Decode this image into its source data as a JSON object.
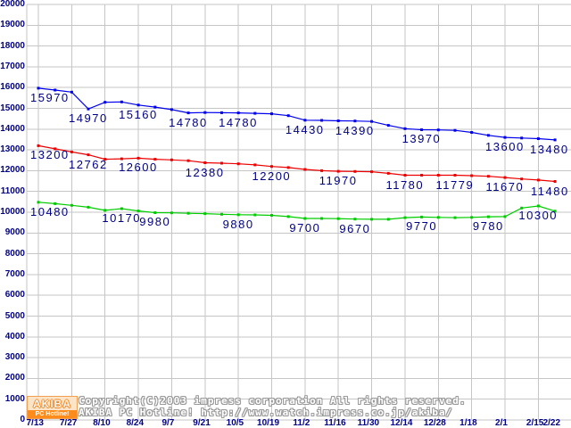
{
  "chart_data": {
    "type": "line",
    "title": "",
    "grid": true,
    "legend": "none",
    "ylim": [
      0,
      20000
    ],
    "y_tick_step": 1000,
    "y_ticks": [
      0,
      1000,
      2000,
      3000,
      4000,
      5000,
      6000,
      7000,
      8000,
      9000,
      10000,
      11000,
      12000,
      13000,
      14000,
      15000,
      16000,
      17000,
      18000,
      19000,
      20000
    ],
    "x_ticks": [
      {
        "label": "7/13",
        "i": 0
      },
      {
        "label": "7/27",
        "i": 2
      },
      {
        "label": "8/10",
        "i": 4
      },
      {
        "label": "8/24",
        "i": 6
      },
      {
        "label": "9/7",
        "i": 8
      },
      {
        "label": "9/21",
        "i": 10
      },
      {
        "label": "10/5",
        "i": 12
      },
      {
        "label": "10/19",
        "i": 14
      },
      {
        "label": "11/2",
        "i": 16
      },
      {
        "label": "11/16",
        "i": 18
      },
      {
        "label": "11/30",
        "i": 20
      },
      {
        "label": "12/14",
        "i": 22
      },
      {
        "label": "12/28",
        "i": 24
      },
      {
        "label": "1/18",
        "i": 26
      },
      {
        "label": "2/1",
        "i": 28
      },
      {
        "label": "2/15",
        "i": 30
      },
      {
        "label": "2/22",
        "i": 31
      }
    ],
    "series": [
      {
        "name": "blue",
        "color": "#0000ee",
        "values": [
          15970,
          15880,
          15780,
          14970,
          15290,
          15310,
          15160,
          15060,
          14940,
          14780,
          14800,
          14790,
          14780,
          14760,
          14740,
          14650,
          14430,
          14420,
          14400,
          14390,
          14370,
          14180,
          14020,
          13970,
          13960,
          13940,
          13840,
          13700,
          13600,
          13570,
          13540,
          13480
        ],
        "labels": [
          {
            "i": 0,
            "text": "15970"
          },
          {
            "i": 3,
            "text": "14970"
          },
          {
            "i": 6,
            "text": "15160"
          },
          {
            "i": 9,
            "text": "14780"
          },
          {
            "i": 12,
            "text": "14780"
          },
          {
            "i": 16,
            "text": "14430"
          },
          {
            "i": 19,
            "text": "14390"
          },
          {
            "i": 23,
            "text": "13970"
          },
          {
            "i": 28,
            "text": "13600"
          },
          {
            "i": 31,
            "text": "13480"
          }
        ]
      },
      {
        "name": "red",
        "color": "#ee0000",
        "values": [
          13200,
          13050,
          12900,
          12762,
          12550,
          12570,
          12600,
          12550,
          12520,
          12480,
          12380,
          12360,
          12330,
          12280,
          12200,
          12150,
          12060,
          12000,
          11970,
          11960,
          11950,
          11870,
          11780,
          11780,
          11780,
          11779,
          11760,
          11730,
          11670,
          11600,
          11550,
          11480
        ],
        "labels": [
          {
            "i": 0,
            "text": "13200"
          },
          {
            "i": 3,
            "text": "12762"
          },
          {
            "i": 6,
            "text": "12600"
          },
          {
            "i": 10,
            "text": "12380"
          },
          {
            "i": 14,
            "text": "12200"
          },
          {
            "i": 18,
            "text": "11970"
          },
          {
            "i": 22,
            "text": "11780"
          },
          {
            "i": 25,
            "text": "11779"
          },
          {
            "i": 28,
            "text": "11670"
          },
          {
            "i": 31,
            "text": "11480"
          }
        ]
      },
      {
        "name": "green",
        "color": "#00cc00",
        "values": [
          10480,
          10410,
          10330,
          10240,
          10090,
          10170,
          10060,
          9980,
          9970,
          9950,
          9930,
          9900,
          9880,
          9870,
          9850,
          9790,
          9700,
          9700,
          9690,
          9670,
          9660,
          9660,
          9740,
          9770,
          9750,
          9740,
          9750,
          9780,
          9790,
          10200,
          10300,
          10050
        ],
        "labels": [
          {
            "i": 0,
            "text": "10480"
          },
          {
            "i": 5,
            "text": "10170"
          },
          {
            "i": 7,
            "text": "9980"
          },
          {
            "i": 12,
            "text": "9880"
          },
          {
            "i": 16,
            "text": "9700"
          },
          {
            "i": 19,
            "text": "9670"
          },
          {
            "i": 23,
            "text": "9770"
          },
          {
            "i": 27,
            "text": "9780"
          },
          {
            "i": 30,
            "text": "10300"
          }
        ]
      }
    ],
    "colors": {
      "grid": "#c6c6c6",
      "tick_text": "#000085",
      "value_text": "#000085",
      "background": "#ffffff"
    }
  },
  "footer": {
    "copyright_line1": "Copyright(C)2003 impress corporation All rights reserved.",
    "copyright_line2": "AKIBA PC Hotline!  http://www.watch.impress.co.jp/akiba/",
    "logo": {
      "top": "AKIBA",
      "bottom": "PC Hotline!"
    }
  }
}
